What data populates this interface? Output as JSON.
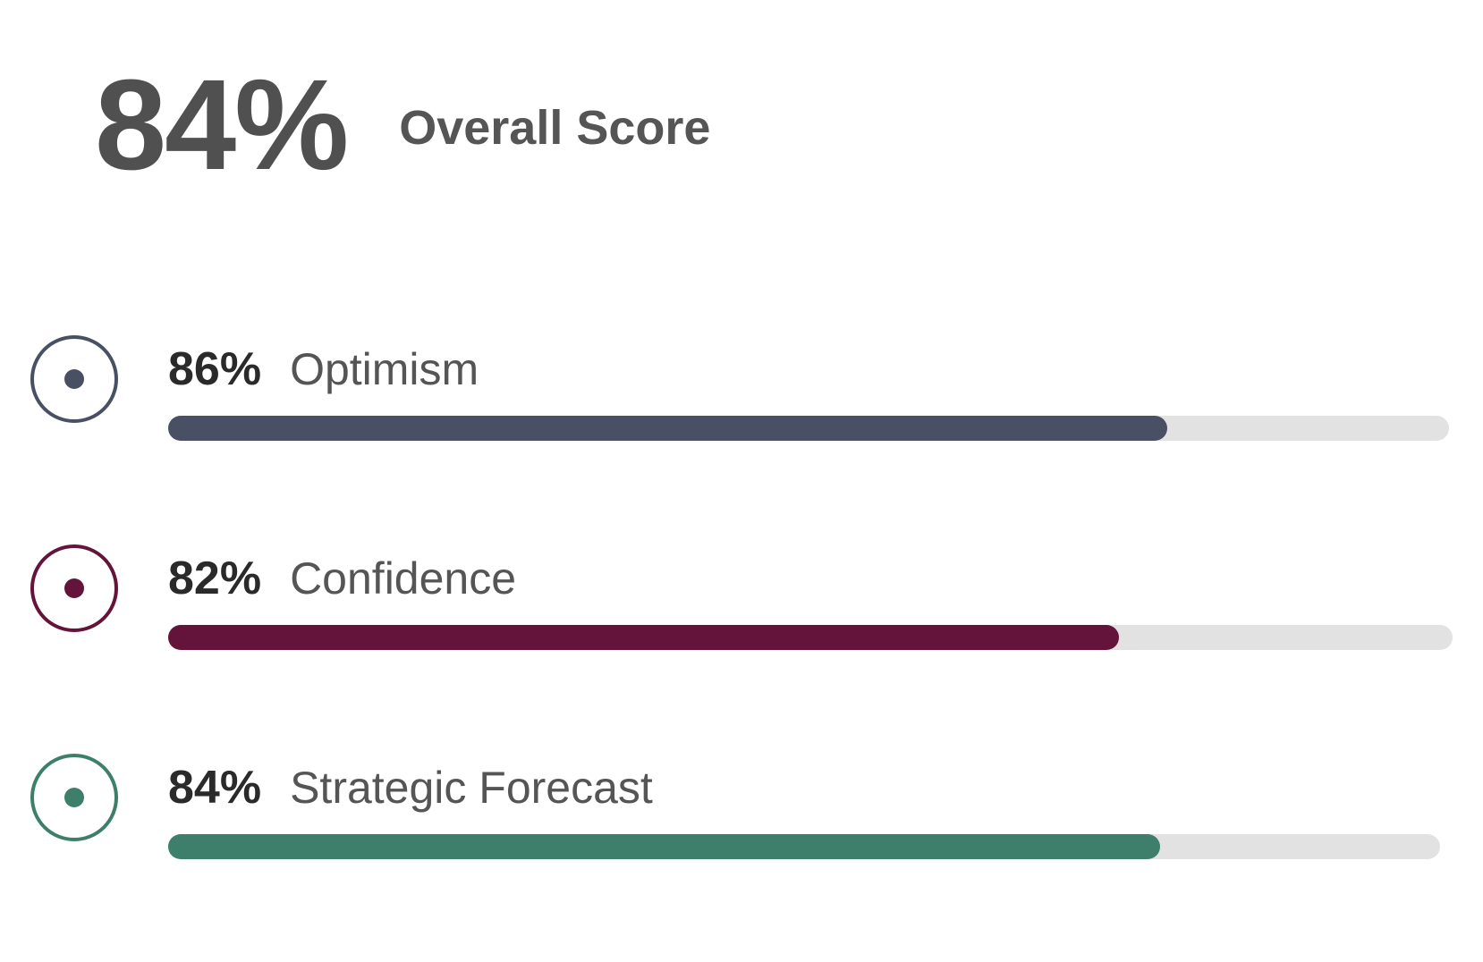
{
  "overall": {
    "value": "84%",
    "label": "Overall Score"
  },
  "metrics": [
    {
      "percent_label": "86%",
      "name": "Optimism",
      "color": "#4a5063",
      "fill_fraction": 0.78
    },
    {
      "percent_label": "82%",
      "name": "Confidence",
      "color": "#64133a",
      "fill_fraction": 0.74
    },
    {
      "percent_label": "84%",
      "name": "Strategic Forecast",
      "color": "#3d7f6b",
      "fill_fraction": 0.78
    }
  ]
}
